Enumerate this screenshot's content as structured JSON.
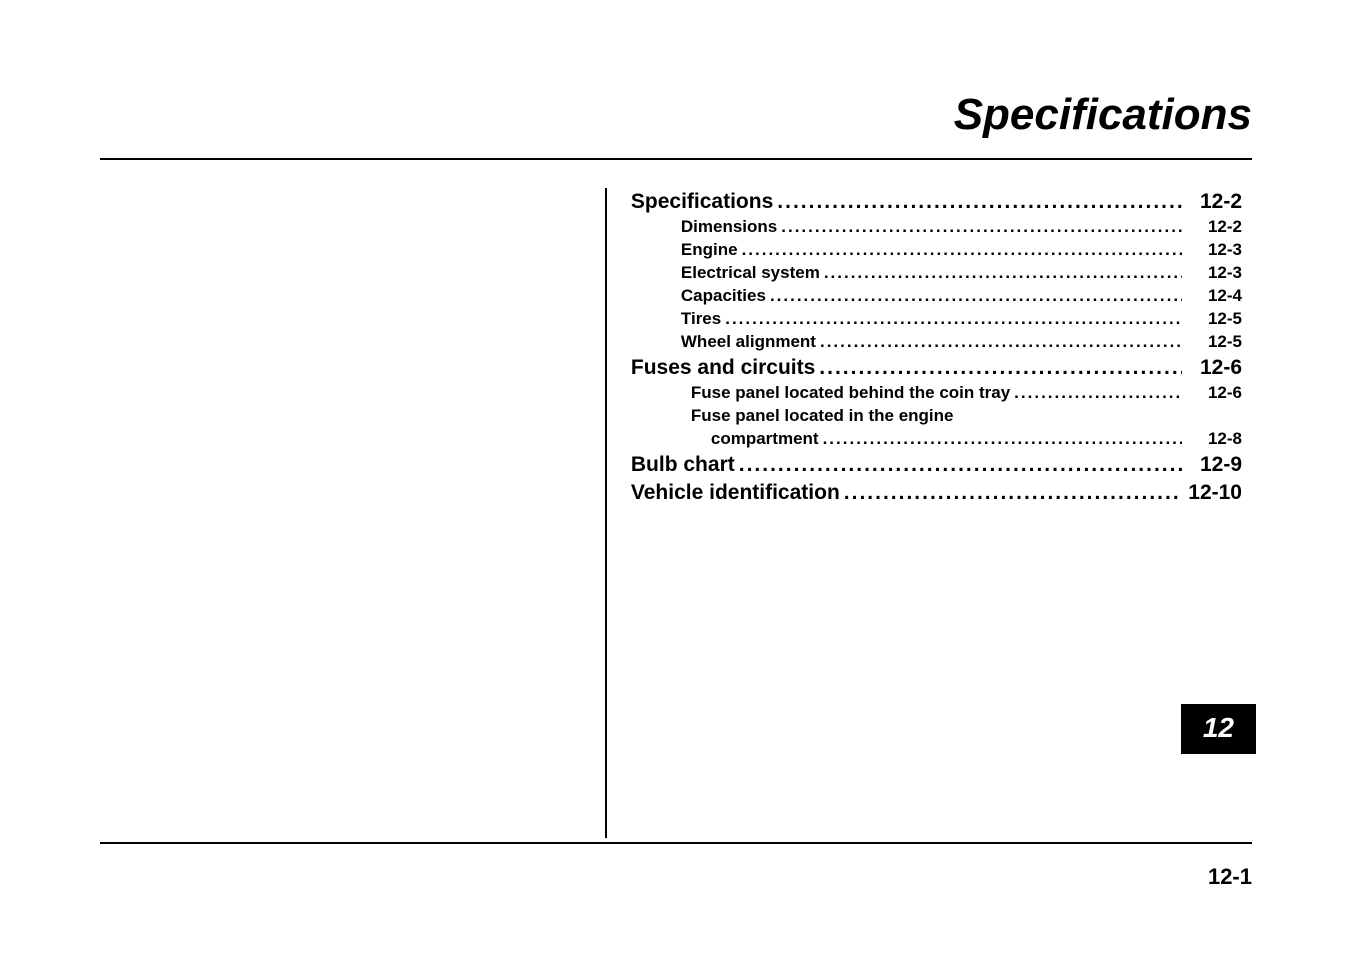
{
  "chapter_title": "Specifications",
  "chapter_tab": "12",
  "footer_page": "12-1",
  "typography": {
    "title_fontsize_pt": 33,
    "title_style": "bold italic",
    "lvl0_fontsize_pt": 16,
    "lvl1_fontsize_pt": 13,
    "tab_fontsize_pt": 21,
    "footer_fontsize_pt": 17,
    "font_family": "Arial",
    "text_color": "#000000",
    "background_color": "#ffffff",
    "rule_color": "#000000",
    "tab_bg": "#000000",
    "tab_fg": "#ffffff"
  },
  "toc": [
    {
      "label": "Specifications",
      "page": "12-2",
      "level": 0,
      "continuation": false
    },
    {
      "label": "Dimensions",
      "page": "12-2",
      "level": 1,
      "continuation": false
    },
    {
      "label": "Engine",
      "page": "12-3",
      "level": 1,
      "continuation": false
    },
    {
      "label": "Electrical system",
      "page": "12-3",
      "level": 1,
      "continuation": false
    },
    {
      "label": "Capacities",
      "page": "12-4",
      "level": 1,
      "continuation": false
    },
    {
      "label": "Tires",
      "page": "12-5",
      "level": 1,
      "continuation": false
    },
    {
      "label": "Wheel alignment",
      "page": "12-5",
      "level": 1,
      "continuation": false
    },
    {
      "label": "Fuses and circuits",
      "page": "12-6",
      "level": 0,
      "continuation": false
    },
    {
      "label": "Fuse panel located behind the coin tray",
      "page": "12-6",
      "level": 2,
      "continuation": false
    },
    {
      "label": "Fuse panel located in the engine",
      "page": "",
      "level": 2,
      "continuation": false
    },
    {
      "label": "compartment",
      "page": "12-8",
      "level": 3,
      "continuation": true
    },
    {
      "label": "Bulb chart",
      "page": "12-9",
      "level": 0,
      "continuation": false
    },
    {
      "label": "Vehicle identification",
      "page": "12-10",
      "level": 0,
      "continuation": false
    }
  ]
}
